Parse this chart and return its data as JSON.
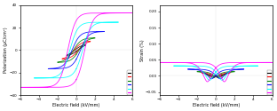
{
  "pe_xlabel": "Electric field (kV/mm)",
  "pe_ylabel": "Polarization (μC/cm²)",
  "se_xlabel": "Electric field (kV/mm)",
  "se_ylabel": "Strain (%)",
  "pe_xlim": [
    -6,
    6
  ],
  "pe_ylim": [
    -40,
    40
  ],
  "se_xlim": [
    -6,
    6
  ],
  "se_ylim": [
    -0.06,
    0.22
  ],
  "colors": [
    "black",
    "red",
    "green",
    "blue",
    "cyan",
    "magenta"
  ],
  "pe_amplitudes": [
    1.0,
    1.5,
    2.0,
    3.0,
    4.5,
    6.0
  ],
  "se_amplitudes": [
    1.0,
    1.5,
    2.0,
    3.0,
    4.5,
    6.0
  ],
  "background": "white",
  "pe_yticks": [
    -40,
    -20,
    0,
    20,
    40
  ],
  "pe_xticks": [
    -6,
    -4,
    -2,
    0,
    2,
    4,
    6
  ],
  "se_yticks": [
    -0.05,
    0.0,
    0.05,
    0.1,
    0.15,
    0.2
  ],
  "se_xticks": [
    -6,
    -4,
    -2,
    0,
    2,
    4,
    6
  ]
}
